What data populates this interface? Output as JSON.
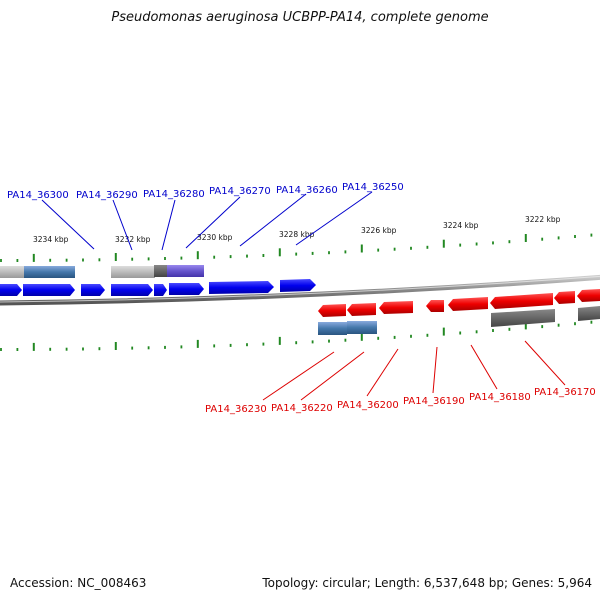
{
  "title": "Pseudomonas aeruginosa UCBPP-PA14, complete genome",
  "footer": {
    "accession": "Accession: NC_008463",
    "meta": "Topology: circular; Length: 6,537,648 bp; Genes: 5,964"
  },
  "colors": {
    "forward_genes": "#0000ee",
    "reverse_genes": "#ee0000",
    "forward_labels": "#0000cc",
    "reverse_labels": "#dd0000",
    "ticks": "#228822",
    "backbone": "#888888",
    "feature_grey": "#999999",
    "feature_blue": "#4477aa",
    "feature_purple": "#6655cc"
  },
  "scale_labels": [
    "3234 kbp",
    "3232 kbp",
    "3230 kbp",
    "3228 kbp",
    "3226 kbp",
    "3224 kbp",
    "3222 kbp"
  ],
  "forward_labels": [
    "PA14_36300",
    "PA14_36290",
    "PA14_36280",
    "PA14_36270",
    "PA14_36260",
    "PA14_36250"
  ],
  "reverse_labels": [
    "PA14_36230",
    "PA14_36220",
    "PA14_36200",
    "PA14_36190",
    "PA14_36180",
    "PA14_36170"
  ]
}
